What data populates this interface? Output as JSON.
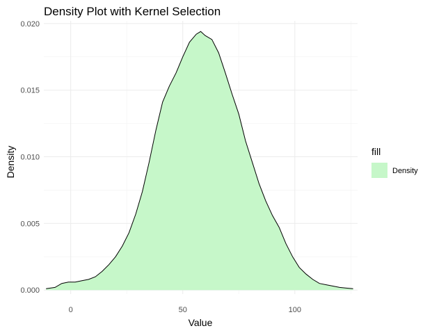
{
  "chart_data": {
    "type": "area",
    "title": "Density Plot with Kernel Selection",
    "xlabel": "Value",
    "ylabel": "Density",
    "xlim": [
      -12,
      128
    ],
    "ylim": [
      -0.0003,
      0.0202
    ],
    "x_ticks": [
      0,
      50,
      100
    ],
    "x_tick_labels": [
      "0",
      "50",
      "100"
    ],
    "y_ticks": [
      0,
      0.005,
      0.01,
      0.015,
      0.02
    ],
    "y_tick_labels": [
      "0.000",
      "0.005",
      "0.010",
      "0.015",
      "0.020"
    ],
    "grid": true,
    "legend": {
      "title": "fill",
      "position": "right",
      "entries": [
        "Density"
      ]
    },
    "fill_color": "#c6f7c9",
    "line_color": "#000000",
    "series": [
      {
        "fill": "Density",
        "x": [
          -11,
          -7,
          -4,
          -1,
          2,
          5,
          8,
          11,
          14,
          17,
          20,
          23,
          26,
          29,
          32,
          35,
          38,
          41,
          44,
          47,
          50,
          53,
          56,
          58,
          60,
          63,
          66,
          69,
          72,
          75,
          78,
          81,
          84,
          87,
          90,
          93,
          96,
          99,
          102,
          105,
          108,
          111,
          114,
          117,
          120,
          123,
          126
        ],
        "y": [
          0.0001,
          0.0002,
          0.0005,
          0.0006,
          0.0006,
          0.0007,
          0.0008,
          0.001,
          0.0014,
          0.0019,
          0.0025,
          0.0033,
          0.0043,
          0.0057,
          0.0074,
          0.0096,
          0.012,
          0.0141,
          0.0153,
          0.0163,
          0.0175,
          0.0186,
          0.0192,
          0.0194,
          0.0191,
          0.0188,
          0.0178,
          0.0163,
          0.0147,
          0.0132,
          0.0112,
          0.0096,
          0.008,
          0.0067,
          0.0056,
          0.0047,
          0.0035,
          0.0025,
          0.0017,
          0.0012,
          0.0008,
          0.0005,
          0.0004,
          0.0003,
          0.0002,
          0.00015,
          0.0001
        ]
      }
    ]
  }
}
